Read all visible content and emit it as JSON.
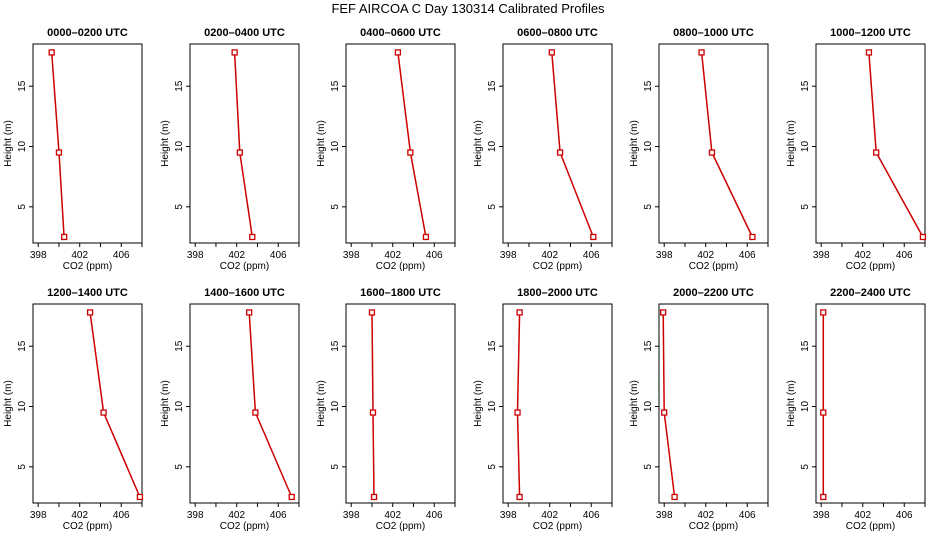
{
  "title": "FEF AIRCOA C  Day 130314  Calibrated Profiles",
  "colors": {
    "series": "#cc0000",
    "axis": "#000000"
  },
  "chart_data": [
    {
      "type": "line",
      "title": "0000–0200 UTC",
      "xlabel": "CO2 (ppm)",
      "ylabel": "Height (m)",
      "xlim": [
        397.5,
        408
      ],
      "ylim": [
        2,
        18.5
      ],
      "xticks": [
        398,
        402,
        406
      ],
      "yticks": [
        5,
        10,
        15
      ],
      "series": [
        {
          "x": [
            399.3,
            400.0,
            400.5
          ],
          "y": [
            17.8,
            9.5,
            2.5
          ]
        }
      ]
    },
    {
      "type": "line",
      "title": "0200–0400 UTC",
      "xlabel": "CO2 (ppm)",
      "ylabel": "Height (m)",
      "xlim": [
        397.5,
        408
      ],
      "ylim": [
        2,
        18.5
      ],
      "xticks": [
        398,
        402,
        406
      ],
      "yticks": [
        5,
        10,
        15
      ],
      "series": [
        {
          "x": [
            401.8,
            402.3,
            403.5
          ],
          "y": [
            17.8,
            9.5,
            2.5
          ]
        }
      ]
    },
    {
      "type": "line",
      "title": "0400–0600 UTC",
      "xlabel": "CO2 (ppm)",
      "ylabel": "Height (m)",
      "xlim": [
        397.5,
        408
      ],
      "ylim": [
        2,
        18.5
      ],
      "xticks": [
        398,
        402,
        406
      ],
      "yticks": [
        5,
        10,
        15
      ],
      "series": [
        {
          "x": [
            402.5,
            403.7,
            405.2
          ],
          "y": [
            17.8,
            9.5,
            2.5
          ]
        }
      ]
    },
    {
      "type": "line",
      "title": "0600–0800 UTC",
      "xlabel": "CO2 (ppm)",
      "ylabel": "Height (m)",
      "xlim": [
        397.5,
        408
      ],
      "ylim": [
        2,
        18.5
      ],
      "xticks": [
        398,
        402,
        406
      ],
      "yticks": [
        5,
        10,
        15
      ],
      "series": [
        {
          "x": [
            402.2,
            403.0,
            406.2
          ],
          "y": [
            17.8,
            9.5,
            2.5
          ]
        }
      ]
    },
    {
      "type": "line",
      "title": "0800–1000 UTC",
      "xlabel": "CO2 (ppm)",
      "ylabel": "Height (m)",
      "xlim": [
        397.5,
        408
      ],
      "ylim": [
        2,
        18.5
      ],
      "xticks": [
        398,
        402,
        406
      ],
      "yticks": [
        5,
        10,
        15
      ],
      "series": [
        {
          "x": [
            401.6,
            402.6,
            406.5
          ],
          "y": [
            17.8,
            9.5,
            2.5
          ]
        }
      ]
    },
    {
      "type": "line",
      "title": "1000–1200 UTC",
      "xlabel": "CO2 (ppm)",
      "ylabel": "Height (m)",
      "xlim": [
        397.5,
        408
      ],
      "ylim": [
        2,
        18.5
      ],
      "xticks": [
        398,
        402,
        406
      ],
      "yticks": [
        5,
        10,
        15
      ],
      "series": [
        {
          "x": [
            402.6,
            403.3,
            407.8
          ],
          "y": [
            17.8,
            9.5,
            2.5
          ]
        }
      ]
    },
    {
      "type": "line",
      "title": "1200–1400 UTC",
      "xlabel": "CO2 (ppm)",
      "ylabel": "Height (m)",
      "xlim": [
        397.5,
        408
      ],
      "ylim": [
        2,
        18.5
      ],
      "xticks": [
        398,
        402,
        406
      ],
      "yticks": [
        5,
        10,
        15
      ],
      "series": [
        {
          "x": [
            403.0,
            404.3,
            407.8
          ],
          "y": [
            17.8,
            9.5,
            2.5
          ]
        }
      ]
    },
    {
      "type": "line",
      "title": "1400–1600 UTC",
      "xlabel": "CO2 (ppm)",
      "ylabel": "Height (m)",
      "xlim": [
        397.5,
        408
      ],
      "ylim": [
        2,
        18.5
      ],
      "xticks": [
        398,
        402,
        406
      ],
      "yticks": [
        5,
        10,
        15
      ],
      "series": [
        {
          "x": [
            403.2,
            403.8,
            407.3
          ],
          "y": [
            17.8,
            9.5,
            2.5
          ]
        }
      ]
    },
    {
      "type": "line",
      "title": "1600–1800 UTC",
      "xlabel": "CO2 (ppm)",
      "ylabel": "Height (m)",
      "xlim": [
        397.5,
        408
      ],
      "ylim": [
        2,
        18.5
      ],
      "xticks": [
        398,
        402,
        406
      ],
      "yticks": [
        5,
        10,
        15
      ],
      "series": [
        {
          "x": [
            400.0,
            400.1,
            400.2
          ],
          "y": [
            17.8,
            9.5,
            2.5
          ]
        }
      ]
    },
    {
      "type": "line",
      "title": "1800–2000 UTC",
      "xlabel": "CO2 (ppm)",
      "ylabel": "Height (m)",
      "xlim": [
        397.5,
        408
      ],
      "ylim": [
        2,
        18.5
      ],
      "xticks": [
        398,
        402,
        406
      ],
      "yticks": [
        5,
        10,
        15
      ],
      "series": [
        {
          "x": [
            399.1,
            398.9,
            399.1
          ],
          "y": [
            17.8,
            9.5,
            2.5
          ]
        }
      ]
    },
    {
      "type": "line",
      "title": "2000–2200 UTC",
      "xlabel": "CO2 (ppm)",
      "ylabel": "Height (m)",
      "xlim": [
        397.5,
        408
      ],
      "ylim": [
        2,
        18.5
      ],
      "xticks": [
        398,
        402,
        406
      ],
      "yticks": [
        5,
        10,
        15
      ],
      "series": [
        {
          "x": [
            397.9,
            398.0,
            399.0
          ],
          "y": [
            17.8,
            9.5,
            2.5
          ]
        }
      ]
    },
    {
      "type": "line",
      "title": "2200–2400 UTC",
      "xlabel": "CO2 (ppm)",
      "ylabel": "Height (m)",
      "xlim": [
        397.5,
        408
      ],
      "ylim": [
        2,
        18.5
      ],
      "xticks": [
        398,
        402,
        406
      ],
      "yticks": [
        5,
        10,
        15
      ],
      "series": [
        {
          "x": [
            398.2,
            398.2,
            398.2
          ],
          "y": [
            17.8,
            9.5,
            2.5
          ]
        }
      ]
    }
  ]
}
